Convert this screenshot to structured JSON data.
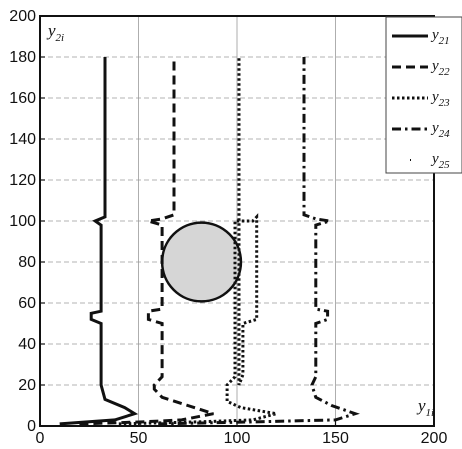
{
  "chart_data": {
    "type": "line",
    "title": "",
    "xlabel": "y",
    "xlabel_sub": "1i",
    "ylabel": "y",
    "ylabel_sub": "2i",
    "xlim": [
      0,
      200
    ],
    "ylim": [
      0,
      200
    ],
    "x_ticks": [
      "0",
      "50",
      "100",
      "150",
      "200"
    ],
    "y_ticks": [
      "0",
      "20",
      "40",
      "60",
      "80",
      "100",
      "120",
      "140",
      "160",
      "180",
      "200"
    ],
    "grid": true,
    "legend_position": "top-right",
    "obstacle": {
      "shape": "circle",
      "center_x": 82,
      "center_y": 80,
      "radius": 20
    },
    "series": [
      {
        "name": "y",
        "sub": "21",
        "style": "solid",
        "points": [
          [
            10,
            1
          ],
          [
            38,
            3
          ],
          [
            48,
            6
          ],
          [
            43,
            9
          ],
          [
            33,
            13
          ],
          [
            31,
            20
          ],
          [
            31,
            50
          ],
          [
            26,
            52
          ],
          [
            26,
            55
          ],
          [
            31,
            56
          ],
          [
            31,
            98
          ],
          [
            28,
            100
          ],
          [
            33,
            102
          ],
          [
            33,
            180
          ]
        ]
      },
      {
        "name": "y",
        "sub": "22",
        "style": "dash",
        "points": [
          [
            20,
            1
          ],
          [
            52,
            2
          ],
          [
            72,
            3
          ],
          [
            88,
            6
          ],
          [
            75,
            10
          ],
          [
            62,
            14
          ],
          [
            58,
            18
          ],
          [
            58,
            20
          ],
          [
            62,
            24
          ],
          [
            62,
            50
          ],
          [
            55,
            52
          ],
          [
            55,
            56
          ],
          [
            62,
            57
          ],
          [
            62,
            98
          ],
          [
            55,
            100
          ],
          [
            62,
            101
          ],
          [
            68,
            103
          ],
          [
            68,
            180
          ]
        ]
      },
      {
        "name": "y",
        "sub": "23",
        "style": "dot",
        "points": [
          [
            40,
            1
          ],
          [
            80,
            2
          ],
          [
            108,
            3
          ],
          [
            120,
            6
          ],
          [
            102,
            9
          ],
          [
            95,
            12
          ],
          [
            95,
            20
          ],
          [
            99,
            24
          ],
          [
            99,
            100
          ],
          [
            108,
            100
          ],
          [
            110,
            102
          ],
          [
            110,
            52
          ],
          [
            103,
            50
          ],
          [
            103,
            25
          ],
          [
            101,
            20
          ],
          [
            101,
            180
          ]
        ]
      },
      {
        "name": "y",
        "sub": "24",
        "style": "dashdot",
        "points": [
          [
            60,
            1
          ],
          [
            108,
            2
          ],
          [
            150,
            3
          ],
          [
            160,
            6
          ],
          [
            148,
            10
          ],
          [
            140,
            14
          ],
          [
            138,
            20
          ],
          [
            140,
            24
          ],
          [
            140,
            50
          ],
          [
            146,
            52
          ],
          [
            146,
            56
          ],
          [
            140,
            57
          ],
          [
            140,
            98
          ],
          [
            147,
            100
          ],
          [
            140,
            101
          ],
          [
            134,
            103
          ],
          [
            134,
            180
          ]
        ]
      },
      {
        "name": "y",
        "sub": "25",
        "style": "sparse-dot",
        "points": []
      }
    ]
  }
}
